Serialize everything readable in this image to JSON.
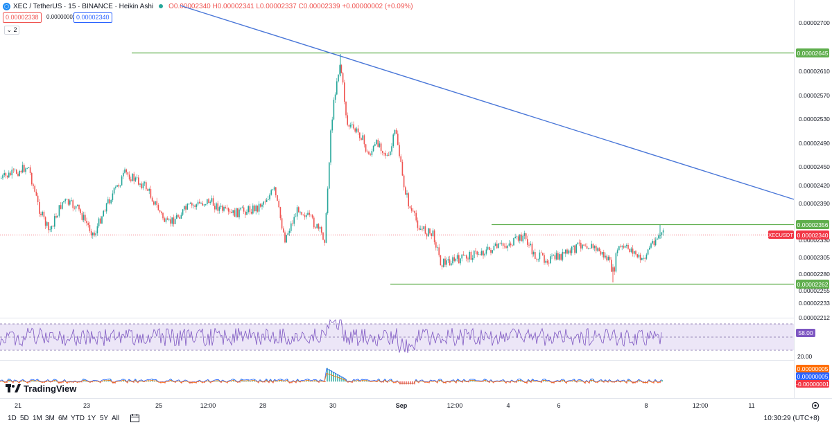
{
  "legend": {
    "symbol_icon": "xec-coin-icon",
    "title": "XEC / TetherUS · 15 · BINANCE · Heikin Ashi",
    "ohlc": "O0.00002340 H0.00002341 L0.00002337 C0.00002339 +0.00000002 (+0.09%)",
    "bid": "0.00002338",
    "spread": "0.00000002",
    "ask": "0.00002340",
    "collapse_count": "2"
  },
  "price_axis": {
    "ticks": [
      "0.00002700",
      "0.00002610",
      "0.00002570",
      "0.00002530",
      "0.00002490",
      "0.00002450",
      "0.00002420",
      "0.00002390",
      "0.00002330",
      "0.00002305",
      "0.00002280",
      "0.00002255",
      "0.00002233",
      "0.00002212"
    ],
    "labels": {
      "resistance_top": "0.00002645",
      "resistance_mid": "0.00002356",
      "current": "0.00002340",
      "support": "0.00002262",
      "symbol_tag": "XECUSDT"
    }
  },
  "rsi_axis": {
    "value": "58.00",
    "low": "20.00"
  },
  "macd_axis": {
    "v1": "0.00000005",
    "v2": "0.00000005",
    "v3": "-0.00000001"
  },
  "time_axis": [
    "21",
    "23",
    "25",
    "12:00",
    "28",
    "30",
    "Sep",
    "12:00",
    "4",
    "6",
    "8",
    "12:00",
    "11"
  ],
  "timeframes": [
    "1D",
    "5D",
    "1M",
    "3M",
    "6M",
    "YTD",
    "1Y",
    "5Y",
    "All"
  ],
  "clock": "10:30:29 (UTC+8)",
  "brand": "TradingView",
  "colors": {
    "up": "#26a69a",
    "down": "#ef5350",
    "trendline": "#4a77d8",
    "hline": "#5fae4d",
    "rsi": "#7e57c2",
    "rsi_band": "#ece6f7",
    "macd_line": "#2962ff",
    "signal_line": "#ff6d00",
    "current_price": "#f23645",
    "blue_label": "#2962ff",
    "orange_label": "#ff6d00"
  },
  "chart_data": {
    "type": "candlestick",
    "style": "Heikin Ashi",
    "symbol": "XEC / TetherUS",
    "interval": "15",
    "exchange": "BINANCE",
    "horizontal_levels": [
      2.645e-05,
      2.356e-05,
      2.262e-05
    ],
    "last_price": 2.34e-05,
    "trendline": {
      "from_level_near": 2.645e-05,
      "direction": "descending"
    },
    "indicators": [
      "RSI",
      "MACD"
    ]
  }
}
